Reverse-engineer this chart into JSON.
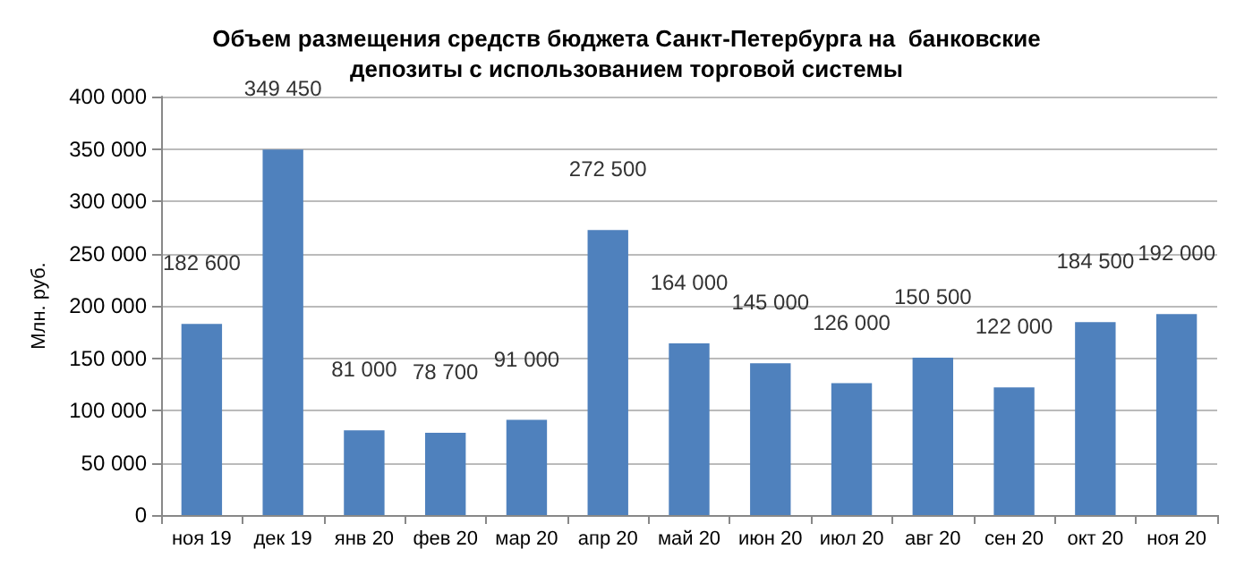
{
  "chart_data": {
    "type": "bar",
    "title": "Объем размещения средств бюджета Санкт-Петербурга на  банковские\nдепозиты с использованием торговой системы",
    "ylabel": "Млн. руб.",
    "categories": [
      "ноя 19",
      "дек 19",
      "янв 20",
      "фев 20",
      "мар 20",
      "апр 20",
      "май 20",
      "июн 20",
      "июл 20",
      "авг 20",
      "сен 20",
      "окт 20",
      "ноя 20"
    ],
    "values": [
      182600,
      349450,
      81000,
      78700,
      91000,
      272500,
      164000,
      145000,
      126000,
      150500,
      122000,
      184500,
      192000
    ],
    "value_labels": [
      "182 600",
      "349 450",
      "81 000",
      "78 700",
      "91 000",
      "272 500",
      "164 000",
      "145 000",
      "126 000",
      "150 500",
      "122 000",
      "184 500",
      "192 000"
    ],
    "color": "#4f81bd",
    "ylim": [
      0,
      400000
    ],
    "yticks": [
      0,
      {
        "value": 50000,
        "label": "50 000"
      },
      {
        "value": 100000,
        "label": "100 000"
      },
      {
        "value": 150000,
        "label": "150 000"
      },
      {
        "value": 200000,
        "label": "200 000"
      },
      {
        "value": 250000,
        "label": "250 000"
      },
      {
        "value": 300000,
        "label": "300 000"
      },
      {
        "value": 350000,
        "label": "350 000"
      },
      {
        "value": 400000,
        "label": "400 000"
      }
    ],
    "grid": "y"
  }
}
